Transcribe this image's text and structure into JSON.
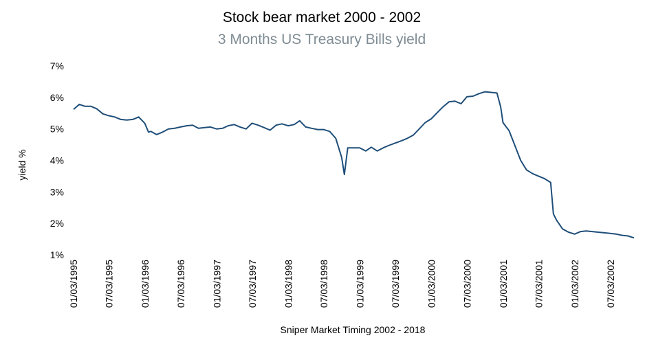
{
  "chart_data": {
    "type": "line",
    "title": "Stock bear market 2000 - 2002",
    "subtitle": "3 Months US Treasury  Bills yield",
    "xlabel": "",
    "ylabel": "yield %",
    "footer": "Sniper Market Timing  2002 - 2018",
    "ylim": [
      1,
      7
    ],
    "y_ticks": [
      "1%",
      "2%",
      "3%",
      "4%",
      "5%",
      "6%",
      "7%"
    ],
    "x_ticks": [
      "01/03/1995",
      "07/03/1995",
      "01/03/1996",
      "07/03/1996",
      "01/03/1997",
      "07/03/1997",
      "01/03/1998",
      "07/03/1998",
      "01/03/1999",
      "07/03/1999",
      "01/03/2000",
      "07/03/2000",
      "01/03/2001",
      "07/03/2001",
      "01/03/2002",
      "07/03/2002"
    ],
    "x_range": [
      "1995-01-03",
      "2002-10-31"
    ],
    "grid": false,
    "line_color": "#1f4e79",
    "series": [
      {
        "x": [
          "1995-01-03",
          "1995-02-01",
          "1995-03-01",
          "1995-04-01",
          "1995-05-01",
          "1995-06-01",
          "1995-07-01",
          "1995-08-01",
          "1995-09-01",
          "1995-10-01",
          "1995-11-01",
          "1995-12-01",
          "1996-01-01",
          "1996-01-20",
          "1996-02-01",
          "1996-03-01",
          "1996-04-01",
          "1996-05-01",
          "1996-06-01",
          "1996-07-01",
          "1996-08-01",
          "1996-09-01",
          "1996-10-01",
          "1996-11-01",
          "1996-12-01",
          "1997-01-01",
          "1997-02-01",
          "1997-03-01",
          "1997-04-01",
          "1997-05-01",
          "1997-06-01",
          "1997-07-01",
          "1997-08-01",
          "1997-09-01",
          "1997-10-01",
          "1997-11-01",
          "1997-12-01",
          "1998-01-01",
          "1998-02-01",
          "1998-03-01",
          "1998-04-01",
          "1998-05-01",
          "1998-06-01",
          "1998-07-01",
          "1998-08-01",
          "1998-09-01",
          "1998-10-01",
          "1998-10-15",
          "1998-11-01",
          "1998-12-01",
          "1999-01-01",
          "1999-02-01",
          "1999-03-01",
          "1999-04-01",
          "1999-05-01",
          "1999-06-01",
          "1999-07-01",
          "1999-08-01",
          "1999-09-01",
          "1999-10-01",
          "1999-11-01",
          "1999-12-01",
          "2000-01-01",
          "2000-02-01",
          "2000-03-01",
          "2000-04-01",
          "2000-05-01",
          "2000-06-01",
          "2000-07-01",
          "2000-08-01",
          "2000-09-01",
          "2000-10-01",
          "2000-11-01",
          "2000-12-01",
          "2000-12-20",
          "2001-01-01",
          "2001-02-01",
          "2001-03-01",
          "2001-04-01",
          "2001-05-01",
          "2001-06-01",
          "2001-07-01",
          "2001-08-01",
          "2001-09-01",
          "2001-09-15",
          "2001-10-01",
          "2001-11-01",
          "2001-12-01",
          "2002-01-01",
          "2002-02-01",
          "2002-03-01",
          "2002-04-01",
          "2002-05-01",
          "2002-06-01",
          "2002-07-01",
          "2002-08-01",
          "2002-09-01",
          "2002-10-01",
          "2002-10-31"
        ],
        "values": [
          5.62,
          5.78,
          5.72,
          5.72,
          5.64,
          5.48,
          5.42,
          5.38,
          5.3,
          5.28,
          5.3,
          5.38,
          5.18,
          4.9,
          4.92,
          4.82,
          4.9,
          5.0,
          5.02,
          5.06,
          5.1,
          5.12,
          5.02,
          5.04,
          5.06,
          5.0,
          5.02,
          5.1,
          5.14,
          5.06,
          5.0,
          5.18,
          5.12,
          5.04,
          4.96,
          5.12,
          5.16,
          5.1,
          5.14,
          5.26,
          5.06,
          5.02,
          4.98,
          4.98,
          4.92,
          4.7,
          4.1,
          3.55,
          4.4,
          4.4,
          4.4,
          4.3,
          4.42,
          4.3,
          4.4,
          4.48,
          4.55,
          4.62,
          4.7,
          4.8,
          5.0,
          5.2,
          5.32,
          5.52,
          5.7,
          5.86,
          5.88,
          5.8,
          6.02,
          6.04,
          6.12,
          6.18,
          6.16,
          6.14,
          5.7,
          5.2,
          4.94,
          4.5,
          4.0,
          3.7,
          3.58,
          3.5,
          3.42,
          3.3,
          2.3,
          2.1,
          1.82,
          1.72,
          1.66,
          1.74,
          1.76,
          1.74,
          1.72,
          1.7,
          1.68,
          1.66,
          1.62,
          1.6,
          1.54
        ]
      }
    ]
  }
}
